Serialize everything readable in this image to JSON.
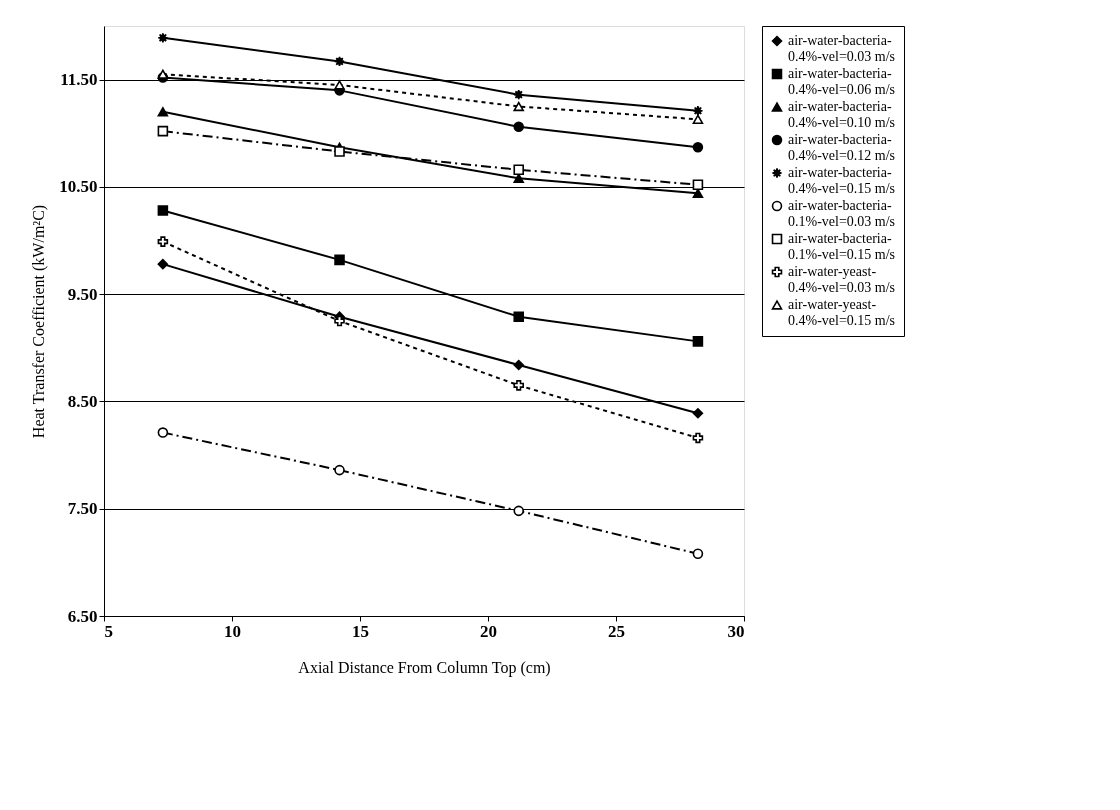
{
  "chart_data": {
    "type": "line",
    "xlabel": "Axial Distance From Column Top (cm)",
    "ylabel": "Heat Transfer Coefficient (kW/m²C)",
    "x": [
      7.3,
      14.2,
      21.2,
      28.2
    ],
    "xlim": [
      5,
      30
    ],
    "xticks": [
      5,
      10,
      15,
      20,
      25,
      30
    ],
    "ylim": [
      6.5,
      12.0
    ],
    "yticks": [
      {
        "value": 6.5,
        "label": "6.50"
      },
      {
        "value": 7.5,
        "label": "7.50"
      },
      {
        "value": 8.5,
        "label": "8.50"
      },
      {
        "value": 9.5,
        "label": "9.50"
      },
      {
        "value": 10.5,
        "label": "10.50"
      },
      {
        "value": 11.5,
        "label": "11.50"
      }
    ],
    "grid": "y",
    "legend": "right",
    "series": [
      {
        "name": "air-water-bacteria-0.4%-vel=0.03 m/s",
        "color": "#000000",
        "marker": "diamond",
        "line_style": "solid",
        "values": [
          9.78,
          9.29,
          8.84,
          8.39
        ]
      },
      {
        "name": "air-water-bacteria-0.4%-vel=0.06 m/s",
        "color": "#000000",
        "marker": "square",
        "line_style": "solid",
        "values": [
          10.28,
          9.82,
          9.29,
          9.06
        ]
      },
      {
        "name": "air-water-bacteria-0.4%-vel=0.10 m/s",
        "color": "#000000",
        "marker": "triangle",
        "line_style": "solid",
        "values": [
          11.2,
          10.87,
          10.58,
          10.44
        ]
      },
      {
        "name": "air-water-bacteria-0.4%-vel=0.12 m/s",
        "color": "#000000",
        "marker": "circle",
        "line_style": "solid",
        "values": [
          11.52,
          11.4,
          11.06,
          10.87
        ]
      },
      {
        "name": "air-water-bacteria-0.4%-vel=0.15 m/s",
        "color": "#000000",
        "marker": "star",
        "line_style": "solid",
        "values": [
          11.89,
          11.67,
          11.36,
          11.21
        ]
      },
      {
        "name": "air-water-bacteria-0.1%-vel=0.03 m/s",
        "color": "#000000",
        "marker": "circle",
        "line_style": "dashed",
        "values": [
          8.21,
          7.86,
          7.48,
          7.08
        ]
      },
      {
        "name": "air-water-bacteria-0.1%-vel=0.15 m/s",
        "color": "#000000",
        "marker": "square",
        "line_style": "dashed",
        "values": [
          11.02,
          10.83,
          10.66,
          10.52
        ]
      },
      {
        "name": "air-water-yeast-0.4%-vel=0.03 m/s",
        "color": "#000000",
        "marker": "cross",
        "line_style": "dotted",
        "values": [
          9.99,
          9.25,
          8.65,
          8.16
        ]
      },
      {
        "name": "air-water-yeast-0.4%-vel=0.15 m/s",
        "color": "#000000",
        "marker": "triangle",
        "line_style": "dotted",
        "values": [
          11.55,
          11.45,
          11.25,
          11.13
        ]
      }
    ]
  }
}
